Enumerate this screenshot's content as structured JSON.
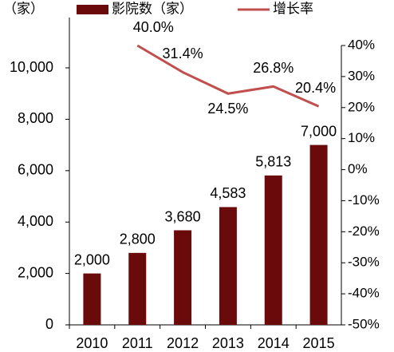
{
  "chart_data": {
    "type": "bar_line",
    "y_label": "（家）",
    "categories": [
      "2010",
      "2011",
      "2012",
      "2013",
      "2014",
      "2015"
    ],
    "series": [
      {
        "name": "影院数（家）",
        "type": "bar",
        "color": "#6b0a0a",
        "values": [
          2000,
          2800,
          3680,
          4583,
          5813,
          7000
        ],
        "value_labels": [
          "2,000",
          "2,800",
          "3,680",
          "4,583",
          "5,813",
          "7,000"
        ]
      },
      {
        "name": "增长率",
        "type": "line",
        "axis": "y2",
        "color": "#c0504d",
        "values": [
          null,
          40.0,
          31.4,
          24.5,
          26.8,
          20.4
        ],
        "value_labels": [
          null,
          "40.0%",
          "31.4%",
          "24.5%",
          "26.8%",
          "20.4%"
        ]
      }
    ],
    "ylim": [
      0,
      10870
    ],
    "yticks": [
      0,
      {
        "value": 2000,
        "label": "2,000"
      },
      {
        "value": 4000,
        "label": "4,000"
      },
      {
        "value": 6000,
        "label": "6,000"
      },
      {
        "value": 8000,
        "label": "8,000"
      },
      {
        "value": 10000,
        "label": "10,000"
      }
    ],
    "y2lim": [
      -50,
      40
    ],
    "y2ticks": [
      {
        "value": -50,
        "label": "-50%"
      },
      {
        "value": -40,
        "label": "-40%"
      },
      {
        "value": -30,
        "label": "-30%"
      },
      {
        "value": -20,
        "label": "-20%"
      },
      {
        "value": -10,
        "label": "-10%"
      },
      {
        "value": 0,
        "label": "0%"
      },
      {
        "value": 10,
        "label": "10%"
      },
      {
        "value": 20,
        "label": "20%"
      },
      {
        "value": 30,
        "label": "30%"
      },
      {
        "value": 40,
        "label": "40%"
      }
    ]
  }
}
